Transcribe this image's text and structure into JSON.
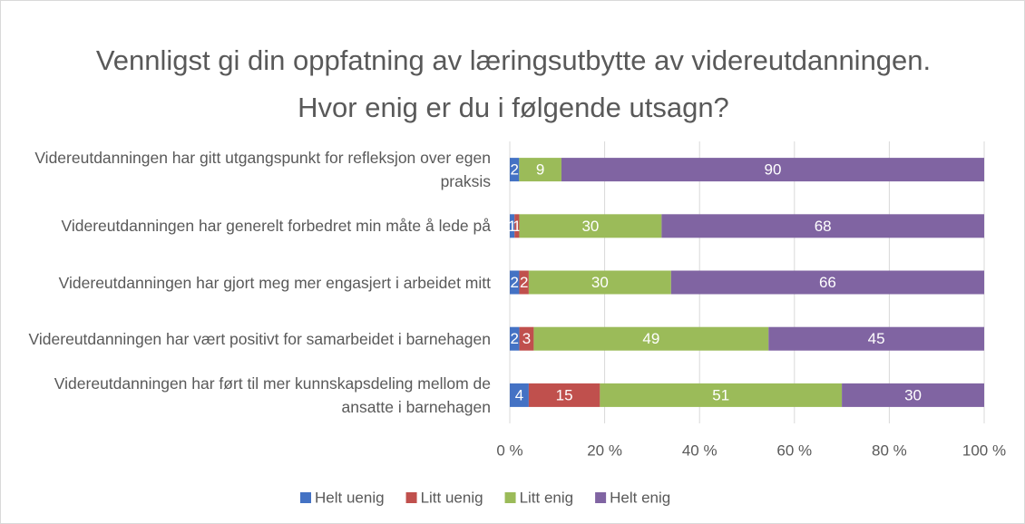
{
  "chart_data": {
    "type": "bar",
    "orientation": "horizontal",
    "stacking": "percent",
    "title": "Vennligst gi din oppfatning av læringsutbytte av videreutdanningen. Hvor enig er du i følgende utsagn?",
    "categories": [
      "Videreutdanningen har gitt utgangspunkt for refleksjon over egen praksis",
      "Videreutdanningen har generelt forbedret min måte å lede på",
      "Videreutdanningen har gjort meg mer engasjert i arbeidet mitt",
      "Videreutdanningen har vært positivt for samarbeidet i barnehagen",
      "Videreutdanningen har ført til mer kunnskapsdeling mellom de ansatte i barnehagen"
    ],
    "series": [
      {
        "name": "Helt uenig",
        "color": "#4472c4",
        "values": [
          2,
          1,
          2,
          2,
          4
        ]
      },
      {
        "name": "Litt uenig",
        "color": "#c0504d",
        "values": [
          null,
          1,
          2,
          3,
          15
        ]
      },
      {
        "name": "Litt enig",
        "color": "#9bbb59",
        "values": [
          9,
          30,
          30,
          49,
          51
        ]
      },
      {
        "name": "Helt enig",
        "color": "#8064a2",
        "values": [
          90,
          68,
          66,
          45,
          30
        ]
      }
    ],
    "xlim": [
      0,
      100
    ],
    "xticks": [
      {
        "value": 0,
        "label": "0 %"
      },
      {
        "value": 20,
        "label": "20 %"
      },
      {
        "value": 40,
        "label": "40 %"
      },
      {
        "value": 60,
        "label": "60 %"
      },
      {
        "value": 80,
        "label": "80 %"
      },
      {
        "value": 100,
        "label": "100 %"
      }
    ],
    "grid": true,
    "legend": "bottom"
  }
}
